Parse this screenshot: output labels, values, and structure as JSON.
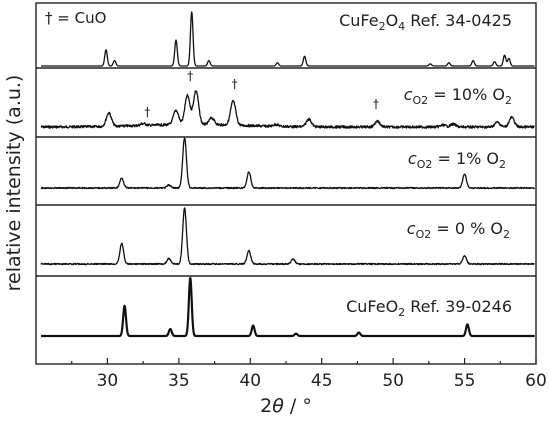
{
  "chart_data": {
    "type": "line",
    "xlabel": "2θ / °",
    "ylabel": "relative intensity (a.u.)",
    "xlim": [
      25,
      60
    ],
    "x_ticks": [
      "30",
      "35",
      "40",
      "45",
      "50",
      "55",
      "60"
    ],
    "y_ticks_shown": false,
    "grid": false,
    "legend": "none",
    "annotation": "† = CuO",
    "panels": [
      {
        "name": "CuFe2O4 Ref. 34-0425",
        "label_main": "CuFe",
        "label_sub": "2",
        "label_tail": "O",
        "label_sub2": "4",
        "label_rest": " Ref. 34-0425",
        "kind": "reference",
        "peaks": [
          {
            "x": 29.9,
            "y": 30
          },
          {
            "x": 30.5,
            "y": 10
          },
          {
            "x": 34.8,
            "y": 48
          },
          {
            "x": 35.9,
            "y": 100
          },
          {
            "x": 37.1,
            "y": 10
          },
          {
            "x": 41.9,
            "y": 6
          },
          {
            "x": 43.8,
            "y": 18
          },
          {
            "x": 52.6,
            "y": 4
          },
          {
            "x": 53.9,
            "y": 6
          },
          {
            "x": 55.6,
            "y": 10
          },
          {
            "x": 57.1,
            "y": 8
          },
          {
            "x": 57.8,
            "y": 20
          },
          {
            "x": 58.1,
            "y": 14
          }
        ]
      },
      {
        "name": "cO2 = 10% O2",
        "label_main": "c",
        "label_sub": "O2",
        "label_rest": " = 10% O",
        "label_sub2": "2",
        "kind": "measured",
        "peaks": [
          {
            "x": 30.1,
            "y": 28
          },
          {
            "x": 32.5,
            "y": 4
          },
          {
            "x": 34.8,
            "y": 30
          },
          {
            "x": 35.6,
            "y": 60
          },
          {
            "x": 36.2,
            "y": 70
          },
          {
            "x": 37.3,
            "y": 14
          },
          {
            "x": 38.8,
            "y": 50
          },
          {
            "x": 41.8,
            "y": 4
          },
          {
            "x": 44.1,
            "y": 16
          },
          {
            "x": 48.9,
            "y": 12
          },
          {
            "x": 53.5,
            "y": 4
          },
          {
            "x": 54.2,
            "y": 6
          },
          {
            "x": 57.3,
            "y": 10
          },
          {
            "x": 58.3,
            "y": 20
          }
        ],
        "cuo_markers": [
          32.8,
          35.8,
          38.9,
          48.8
        ]
      },
      {
        "name": "cO2 = 1% O2",
        "label_main": "c",
        "label_sub": "O2",
        "label_rest": " = 1% O",
        "label_sub2": "2",
        "kind": "measured",
        "peaks": [
          {
            "x": 31.0,
            "y": 20
          },
          {
            "x": 34.3,
            "y": 6
          },
          {
            "x": 35.4,
            "y": 100
          },
          {
            "x": 39.9,
            "y": 32
          },
          {
            "x": 55.0,
            "y": 28
          }
        ]
      },
      {
        "name": "cO2 = 0 % O2",
        "label_main": "c",
        "label_sub": "O2",
        "label_rest": " = 0 % O",
        "label_sub2": "2",
        "kind": "measured",
        "peaks": [
          {
            "x": 31.0,
            "y": 37
          },
          {
            "x": 34.3,
            "y": 10
          },
          {
            "x": 35.4,
            "y": 100
          },
          {
            "x": 39.9,
            "y": 24
          },
          {
            "x": 43.0,
            "y": 9
          },
          {
            "x": 55.0,
            "y": 15
          }
        ]
      },
      {
        "name": "CuFeO2 Ref. 39-0246",
        "label_main": "CuFeO",
        "label_sub": "2",
        "label_rest": " Ref. 39-0246",
        "kind": "reference",
        "peaks": [
          {
            "x": 31.2,
            "y": 52
          },
          {
            "x": 34.4,
            "y": 12
          },
          {
            "x": 35.8,
            "y": 100
          },
          {
            "x": 40.2,
            "y": 18
          },
          {
            "x": 43.2,
            "y": 4
          },
          {
            "x": 47.6,
            "y": 6
          },
          {
            "x": 55.2,
            "y": 20
          }
        ]
      }
    ]
  }
}
